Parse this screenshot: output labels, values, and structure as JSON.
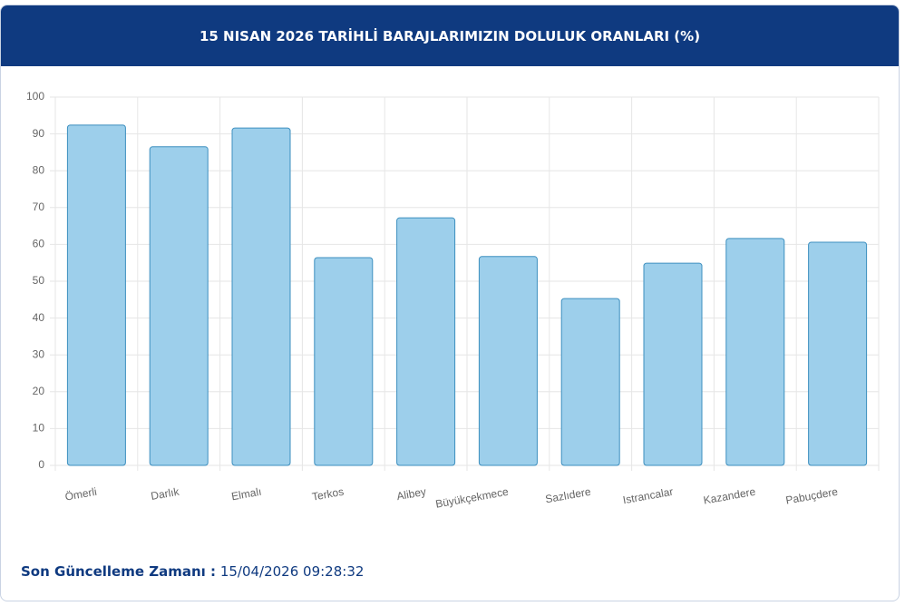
{
  "chart_data": {
    "type": "bar",
    "title": "15 NISAN 2026 TARİHLİ BARAJLARIMIZIN DOLULUK ORANLARI (%)",
    "categories": [
      "Ömerli",
      "Darlık",
      "Elmalı",
      "Terkos",
      "Alibey",
      "Büyükçekmece",
      "Sazlıdere",
      "Istrancalar",
      "Kazandere",
      "Pabuçdere"
    ],
    "values": [
      92.4,
      86.5,
      91.6,
      56.4,
      67.2,
      56.7,
      45.3,
      54.9,
      61.6,
      60.6
    ],
    "color": "#9dcfeb",
    "ylim": [
      0,
      100
    ],
    "yticks": [
      0,
      10,
      20,
      30,
      40,
      50,
      60,
      70,
      80,
      90,
      100
    ],
    "grid": true
  },
  "footer": {
    "label": "Son Güncelleme Zamanı :",
    "value": "15/04/2026 09:28:32"
  }
}
